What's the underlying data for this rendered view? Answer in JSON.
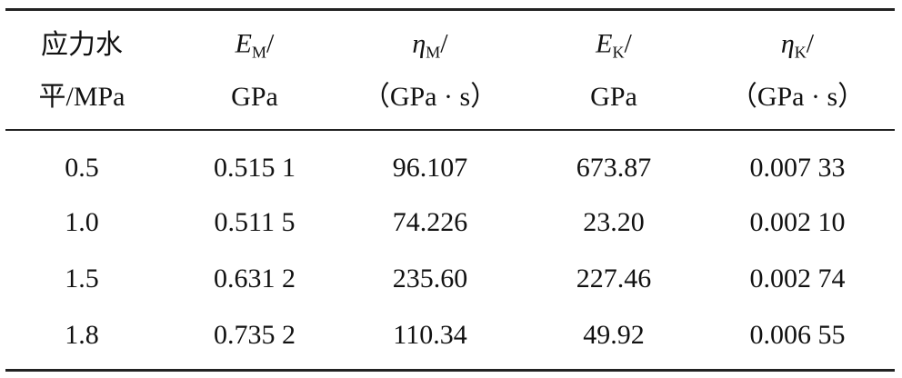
{
  "table": {
    "header": [
      {
        "line1": "应力水",
        "line2": "平/MPa"
      },
      {
        "symbol": "E",
        "sub": "M",
        "slash": "/",
        "unit": "GPa"
      },
      {
        "symbol": "η",
        "sub": "M",
        "slash": "/",
        "unit": "（GPa · s）"
      },
      {
        "symbol": "E",
        "sub": "K",
        "slash": "/",
        "unit": "GPa"
      },
      {
        "symbol": "η",
        "sub": "K",
        "slash": "/",
        "unit": "（GPa · s）"
      }
    ],
    "rows": [
      [
        "0.5",
        "0.515 1",
        "96.107",
        "673.87",
        "0.007 33"
      ],
      [
        "1.0",
        "0.511 5",
        "74.226",
        "23.20",
        "0.002 10"
      ],
      [
        "1.5",
        "0.631 2",
        "235.60",
        "227.46",
        "0.002 74"
      ],
      [
        "1.8",
        "0.735 2",
        "110.34",
        "49.92",
        "0.006 55"
      ]
    ]
  }
}
